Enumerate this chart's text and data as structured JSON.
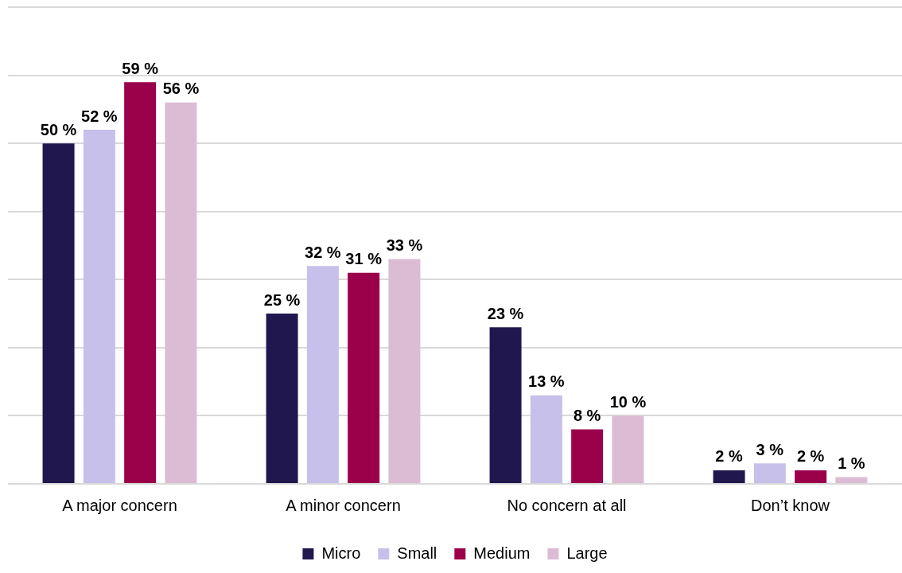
{
  "chart_data": {
    "type": "bar",
    "categories": [
      "A major concern",
      "A minor concern",
      "No concern at all",
      "Don’t know"
    ],
    "series": [
      {
        "name": "Micro",
        "color": "#21174f",
        "values": [
          50,
          25,
          23,
          2
        ],
        "value_labels": [
          "50 %",
          "25 %",
          "23 %",
          "2 %"
        ]
      },
      {
        "name": "Small",
        "color": "#c6c0ea",
        "values": [
          52,
          32,
          13,
          3
        ],
        "value_labels": [
          "52 %",
          "32 %",
          "13 %",
          "3 %"
        ]
      },
      {
        "name": "Medium",
        "color": "#9b004b",
        "values": [
          59,
          31,
          8,
          2
        ],
        "value_labels": [
          "59 %",
          "31 %",
          "8 %",
          "2 %"
        ]
      },
      {
        "name": "Large",
        "color": "#dcbcd4",
        "values": [
          56,
          33,
          10,
          1
        ],
        "value_labels": [
          "56 %",
          "33 %",
          "10 %",
          "1 %"
        ]
      }
    ],
    "ylim": [
      0,
      70
    ],
    "yticks": [
      {
        "value": 0,
        "label": null
      },
      {
        "value": 10,
        "label": null
      },
      {
        "value": 20,
        "label": null
      },
      {
        "value": 30,
        "label": null
      },
      {
        "value": 40,
        "label": null
      },
      {
        "value": 50,
        "label": null
      },
      {
        "value": 60,
        "label": null
      },
      {
        "value": 70,
        "label": null
      }
    ],
    "tick_labels": "x",
    "grid": "y",
    "legend": "bottom"
  }
}
